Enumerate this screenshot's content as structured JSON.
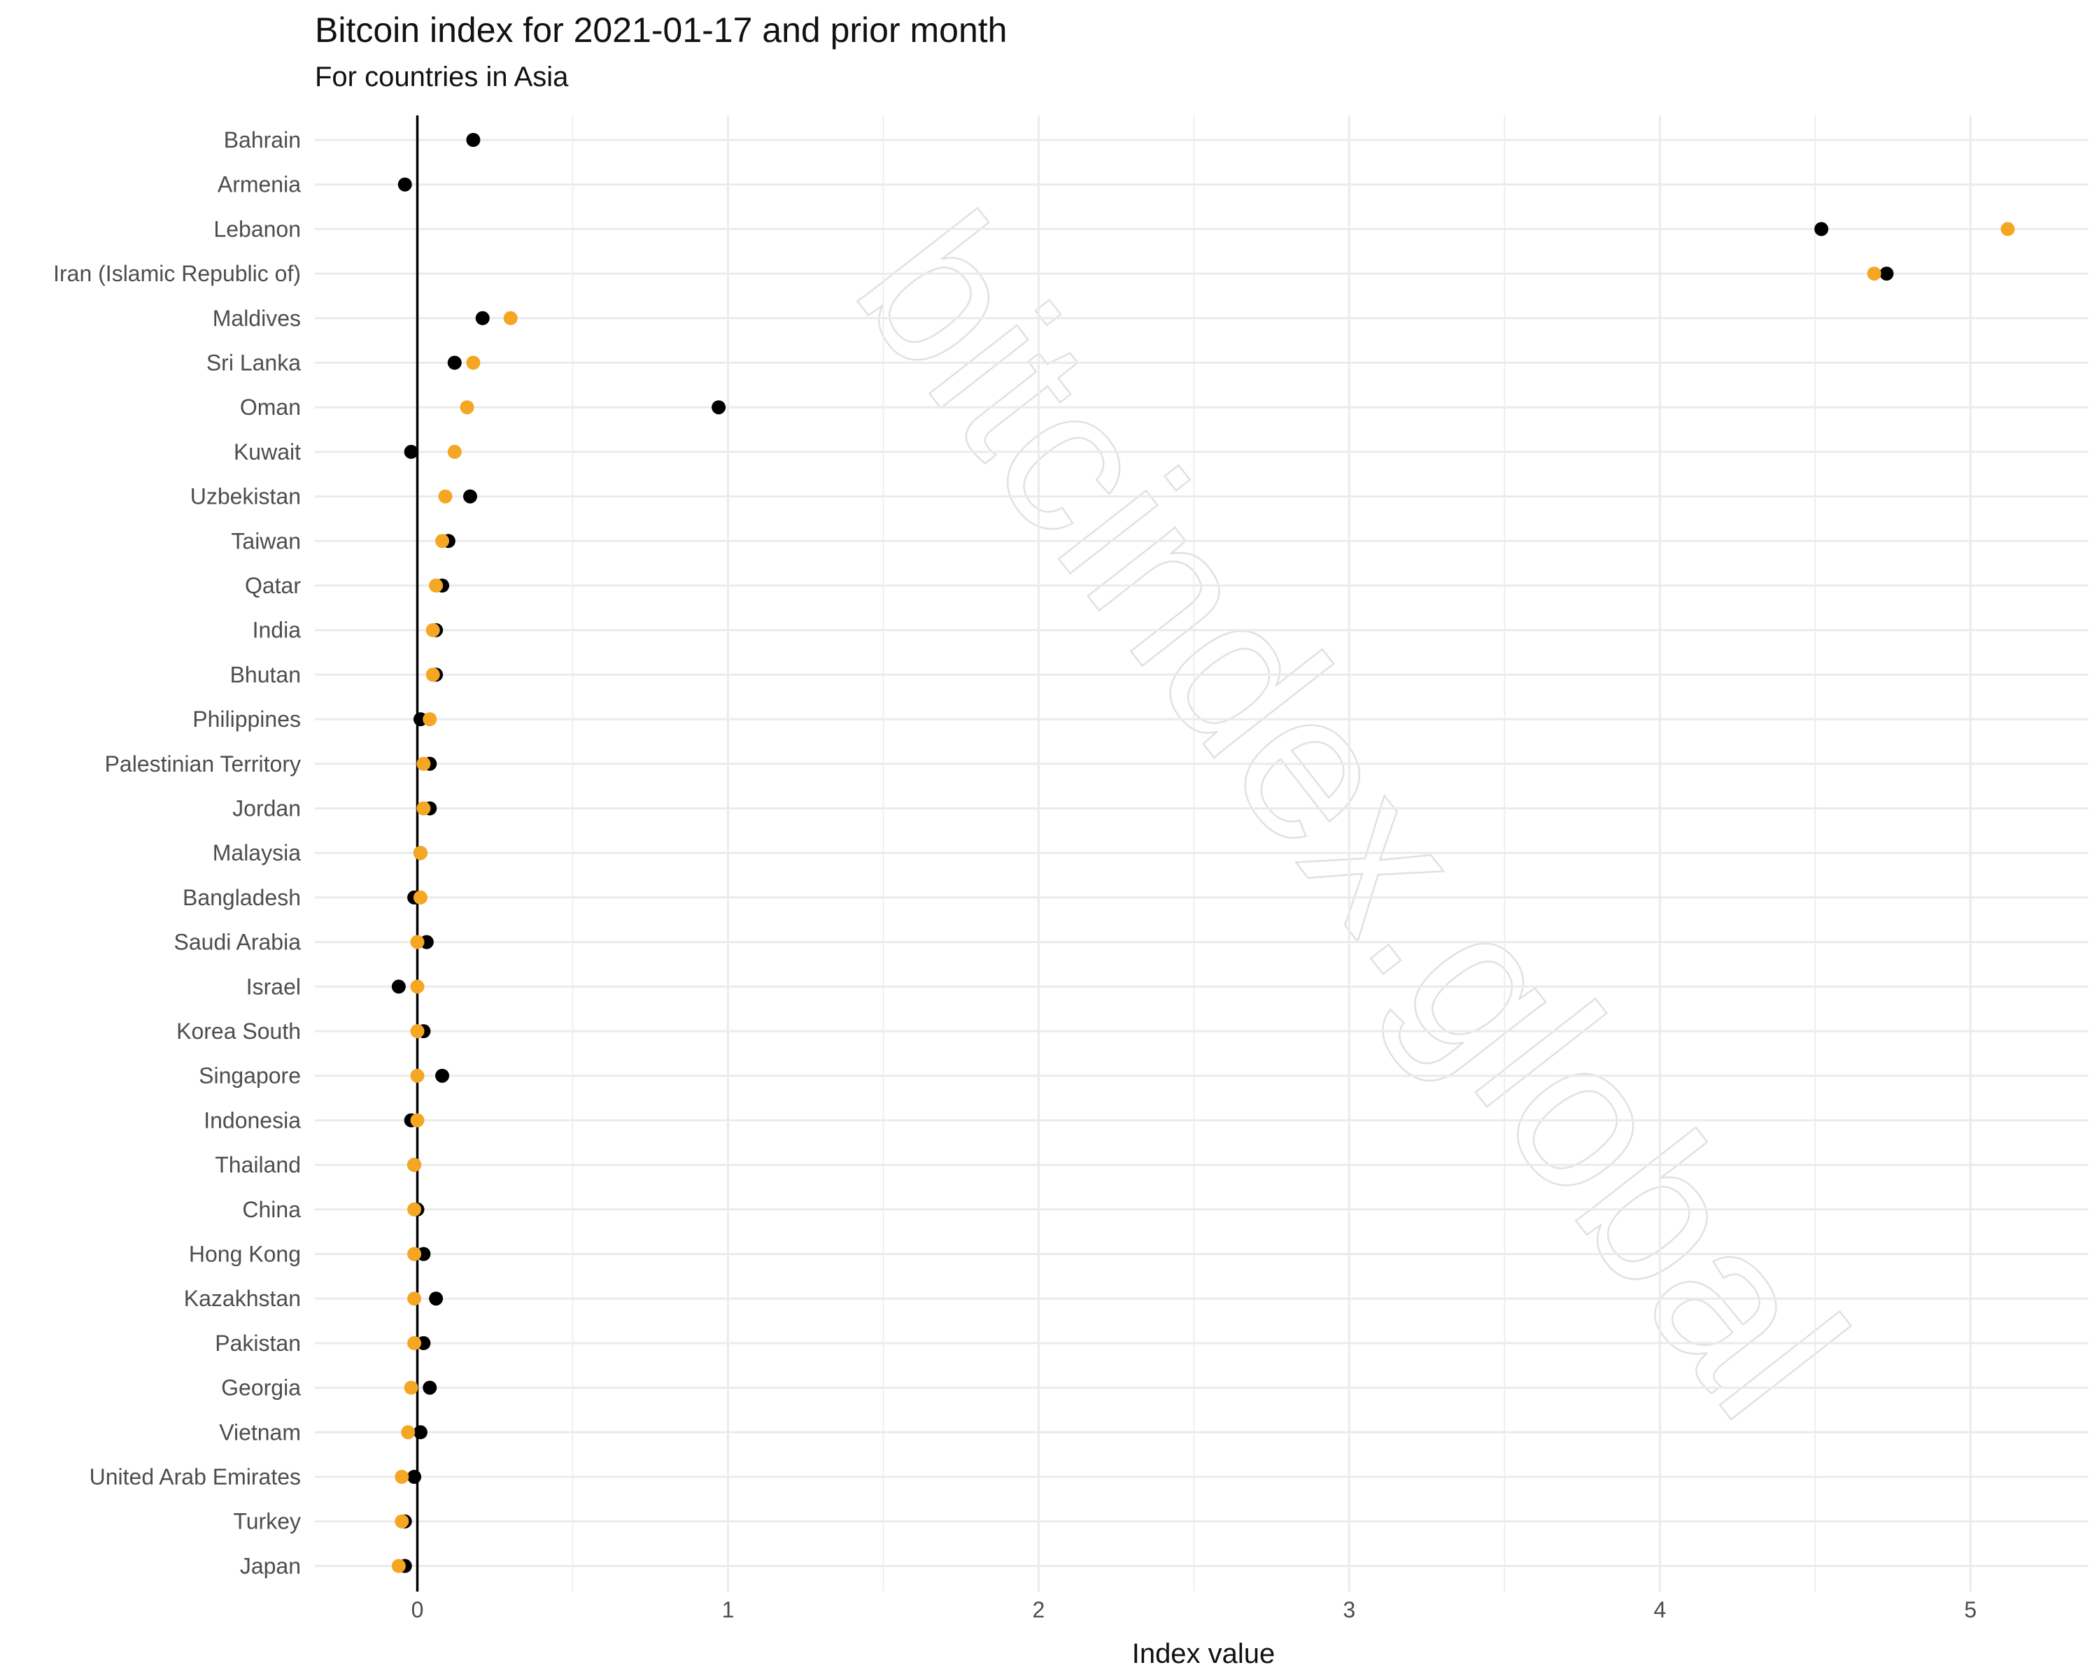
{
  "chart_data": {
    "type": "scatter",
    "title": "Bitcoin index for 2021-01-17 and prior month",
    "subtitle": "For countries in Asia",
    "xlabel": "Index value",
    "ylabel": "",
    "xlim": [
      -0.33,
      5.38
    ],
    "x_ticks": [
      0,
      1,
      2,
      3,
      4,
      5
    ],
    "grid": true,
    "legend": "none",
    "watermark": "bitcindex.global",
    "categories": [
      "Bahrain",
      "Armenia",
      "Lebanon",
      "Iran (Islamic Republic of)",
      "Maldives",
      "Sri Lanka",
      "Oman",
      "Kuwait",
      "Uzbekistan",
      "Taiwan",
      "Qatar",
      "India",
      "Bhutan",
      "Philippines",
      "Palestinian Territory",
      "Jordan",
      "Malaysia",
      "Bangladesh",
      "Saudi Arabia",
      "Israel",
      "Korea South",
      "Singapore",
      "Indonesia",
      "Thailand",
      "China",
      "Hong Kong",
      "Kazakhstan",
      "Pakistan",
      "Georgia",
      "Vietnam",
      "United Arab Emirates",
      "Turkey",
      "Japan"
    ],
    "series": [
      {
        "color": "#000000",
        "values": [
          0.18,
          -0.04,
          4.52,
          4.73,
          0.21,
          0.12,
          0.97,
          -0.02,
          0.17,
          0.1,
          0.08,
          0.06,
          0.06,
          0.01,
          0.04,
          0.04,
          0.01,
          -0.01,
          0.03,
          -0.06,
          0.02,
          0.08,
          -0.02,
          -0.01,
          0.0,
          0.02,
          0.06,
          0.02,
          0.04,
          0.01,
          -0.01,
          -0.04,
          -0.04
        ]
      },
      {
        "color": "#F5A623",
        "values": [
          null,
          null,
          5.12,
          4.69,
          0.3,
          0.18,
          0.16,
          0.12,
          0.09,
          0.08,
          0.06,
          0.05,
          0.05,
          0.04,
          0.02,
          0.02,
          0.01,
          0.01,
          0.0,
          0.0,
          0.0,
          0.0,
          0.0,
          -0.01,
          -0.01,
          -0.01,
          -0.01,
          -0.01,
          -0.02,
          -0.03,
          -0.05,
          -0.05,
          -0.06
        ]
      }
    ]
  }
}
